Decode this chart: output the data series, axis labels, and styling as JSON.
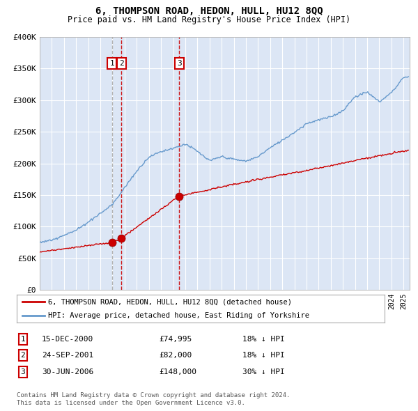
{
  "title": "6, THOMPSON ROAD, HEDON, HULL, HU12 8QQ",
  "subtitle": "Price paid vs. HM Land Registry's House Price Index (HPI)",
  "ylim": [
    0,
    400000
  ],
  "yticks": [
    0,
    50000,
    100000,
    150000,
    200000,
    250000,
    300000,
    350000,
    400000
  ],
  "ytick_labels": [
    "£0",
    "£50K",
    "£100K",
    "£150K",
    "£200K",
    "£250K",
    "£300K",
    "£350K",
    "£400K"
  ],
  "xlim_start": 1995.0,
  "xlim_end": 2025.5,
  "plot_bg_color": "#dce6f5",
  "legend_line1": "6, THOMPSON ROAD, HEDON, HULL, HU12 8QQ (detached house)",
  "legend_line2": "HPI: Average price, detached house, East Riding of Yorkshire",
  "transaction_labels": [
    "1",
    "2",
    "3"
  ],
  "transaction_dates": [
    2000.96,
    2001.73,
    2006.5
  ],
  "transaction_prices": [
    74995,
    82000,
    148000
  ],
  "transaction_table": [
    {
      "num": "1",
      "date": "15-DEC-2000",
      "price": "£74,995",
      "hpi": "18% ↓ HPI"
    },
    {
      "num": "2",
      "date": "24-SEP-2001",
      "price": "£82,000",
      "hpi": "18% ↓ HPI"
    },
    {
      "num": "3",
      "date": "30-JUN-2006",
      "price": "£148,000",
      "hpi": "30% ↓ HPI"
    }
  ],
  "footer1": "Contains HM Land Registry data © Crown copyright and database right 2024.",
  "footer2": "This data is licensed under the Open Government Licence v3.0.",
  "red_line_color": "#cc0000",
  "blue_line_color": "#6699cc",
  "vline1_color": "#aaaaaa",
  "vline2_color": "#cc0000",
  "marker_box_color": "#cc0000",
  "hpi_years": [
    1995,
    1996,
    1997,
    1998,
    1999,
    2000,
    2001,
    2002,
    2003,
    2004,
    2005,
    2006,
    2007,
    2008,
    2009,
    2010,
    2011,
    2012,
    2013,
    2014,
    2015,
    2016,
    2017,
    2018,
    2019,
    2020,
    2021,
    2022,
    2023,
    2024,
    2025
  ],
  "hpi_values": [
    75000,
    79000,
    87000,
    95000,
    108000,
    122000,
    136000,
    162000,
    188000,
    210000,
    218000,
    225000,
    232000,
    220000,
    205000,
    212000,
    208000,
    205000,
    212000,
    226000,
    238000,
    250000,
    265000,
    270000,
    275000,
    285000,
    308000,
    315000,
    300000,
    315000,
    340000
  ],
  "red_anchors_x": [
    1995,
    2000.96,
    2001.73,
    2006.5,
    2025.3
  ],
  "red_anchors_y": [
    60000,
    74995,
    82000,
    148000,
    220000
  ]
}
